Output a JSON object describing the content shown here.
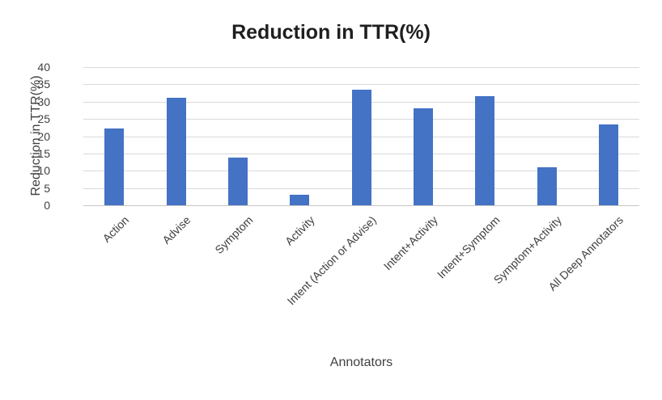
{
  "chart_data": {
    "type": "bar",
    "title": "Reduction in TTR(%)",
    "xlabel": "Annotators",
    "ylabel": "Reduction in TTR(%)",
    "categories": [
      "Action",
      "Advise",
      "Symptom",
      "Activity",
      "Intent (Action or Advise)",
      "Intent+Activity",
      "Intent+Symptom",
      "Symptom+Activity",
      "All Deep Annotators"
    ],
    "values": [
      22.3,
      31.0,
      13.7,
      3.0,
      33.5,
      28.1,
      31.5,
      11.0,
      23.3
    ],
    "ylim": [
      0,
      40
    ],
    "yticks": [
      0,
      5,
      10,
      15,
      20,
      25,
      30,
      35,
      40
    ],
    "grid": true,
    "legend_position": "none",
    "bar_color": "#4472C4",
    "gridline_color": "#D9D9D9",
    "title_color": "#1F1F1F",
    "axis_text_color": "#404040"
  }
}
